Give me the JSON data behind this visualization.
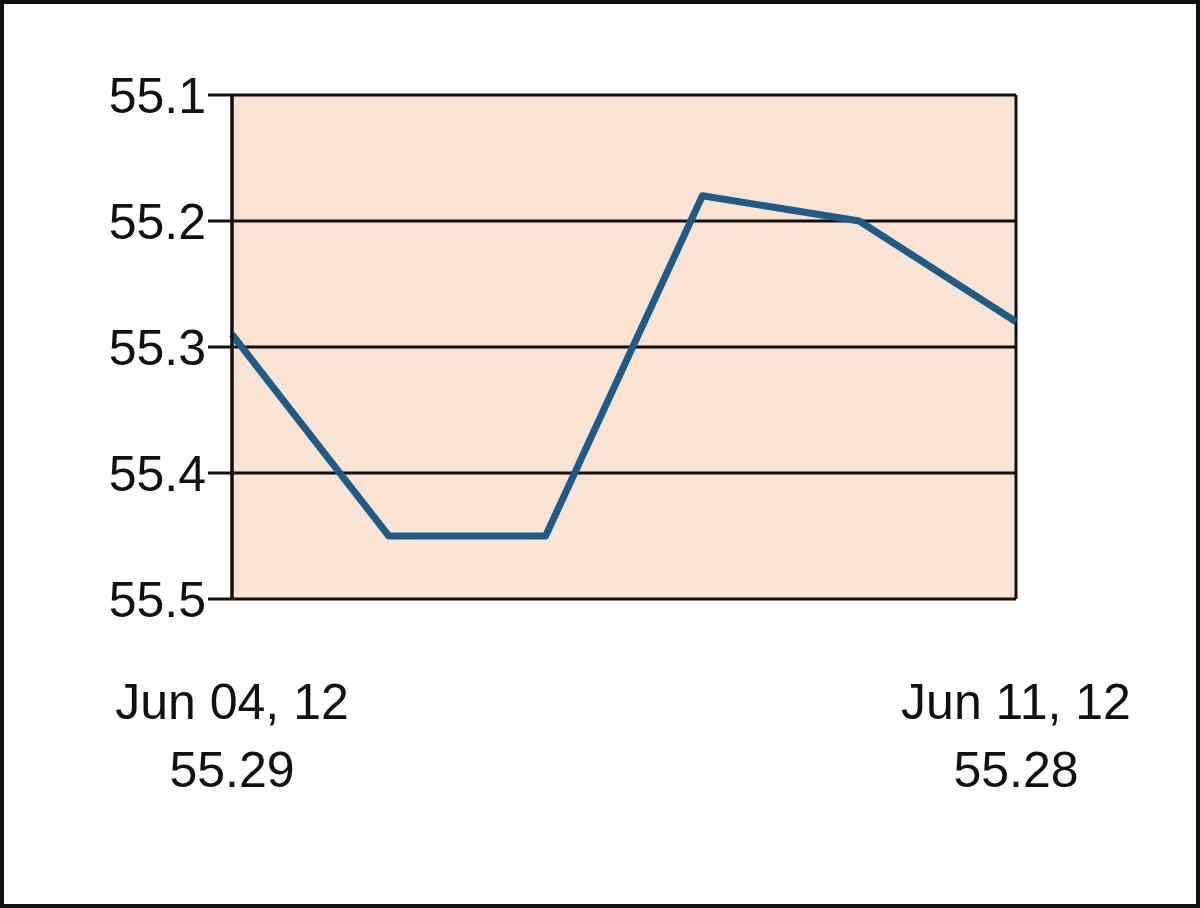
{
  "chart_data": {
    "type": "line",
    "categories": [
      "Jun 04, 12",
      null,
      null,
      null,
      null,
      "Jun 11, 12"
    ],
    "series": [
      {
        "color": "#1f5b87",
        "values": [
          55.29,
          55.45,
          55.45,
          55.18,
          55.2,
          55.28
        ],
        "value_labels": [
          "55.29",
          null,
          null,
          null,
          null,
          "55.28"
        ]
      }
    ],
    "ylim": [
      55.5,
      55.1
    ],
    "yticks": [
      55.1,
      55.2,
      55.3,
      55.4,
      55.5
    ],
    "grid": "y",
    "marker": "none",
    "line_style": "solid",
    "legend": false
  }
}
